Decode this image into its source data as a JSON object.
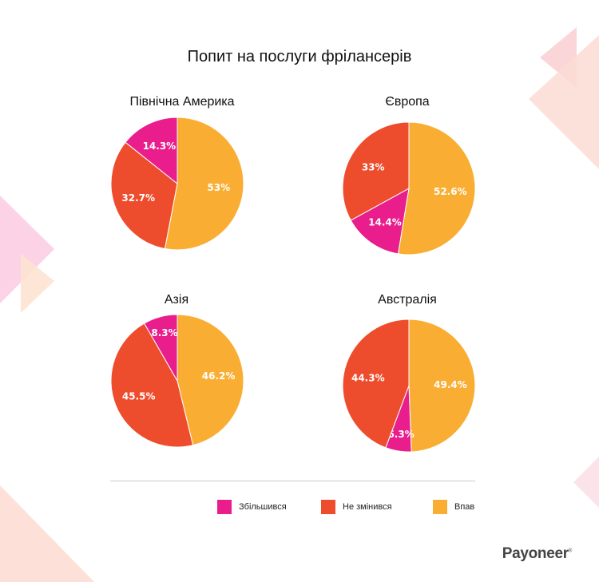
{
  "title": "Попит на послуги фрілансерів",
  "colors": {
    "increased": "#E91E8C",
    "unchanged": "#EE4D2D",
    "decreased": "#F9AE33"
  },
  "legend": [
    {
      "key": "increased",
      "label": "Збільшився"
    },
    {
      "key": "unchanged",
      "label": "Не змінився"
    },
    {
      "key": "decreased",
      "label": "Впав"
    }
  ],
  "chart_data": [
    {
      "type": "pie",
      "title": "Північна Америка",
      "slices": [
        {
          "key": "decreased",
          "label": "Впав",
          "value": 53,
          "display": "53%"
        },
        {
          "key": "unchanged",
          "label": "Не змінився",
          "value": 32.7,
          "display": "32.7%"
        },
        {
          "key": "increased",
          "label": "Збільшився",
          "value": 14.3,
          "display": "14.3%"
        }
      ]
    },
    {
      "type": "pie",
      "title": "Європа",
      "slices": [
        {
          "key": "decreased",
          "label": "Впав",
          "value": 52.6,
          "display": "52.6%"
        },
        {
          "key": "increased",
          "label": "Збільшився",
          "value": 14.4,
          "display": "14.4%"
        },
        {
          "key": "unchanged",
          "label": "Не змінився",
          "value": 33,
          "display": "33%"
        }
      ]
    },
    {
      "type": "pie",
      "title": "Азія",
      "slices": [
        {
          "key": "decreased",
          "label": "Впав",
          "value": 46.2,
          "display": "46.2%"
        },
        {
          "key": "unchanged",
          "label": "Не змінився",
          "value": 45.5,
          "display": "45.5%"
        },
        {
          "key": "increased",
          "label": "Збільшився",
          "value": 8.3,
          "display": "8.3%"
        }
      ]
    },
    {
      "type": "pie",
      "title": "Австралія",
      "slices": [
        {
          "key": "decreased",
          "label": "Впав",
          "value": 49.4,
          "display": "49.4%"
        },
        {
          "key": "increased",
          "label": "Збільшився",
          "value": 6.3,
          "display": "6.3%"
        },
        {
          "key": "unchanged",
          "label": "Не змінився",
          "value": 44.3,
          "display": "44.3%"
        }
      ]
    }
  ],
  "logo": {
    "text": "Payoneer",
    "mark": "®"
  }
}
